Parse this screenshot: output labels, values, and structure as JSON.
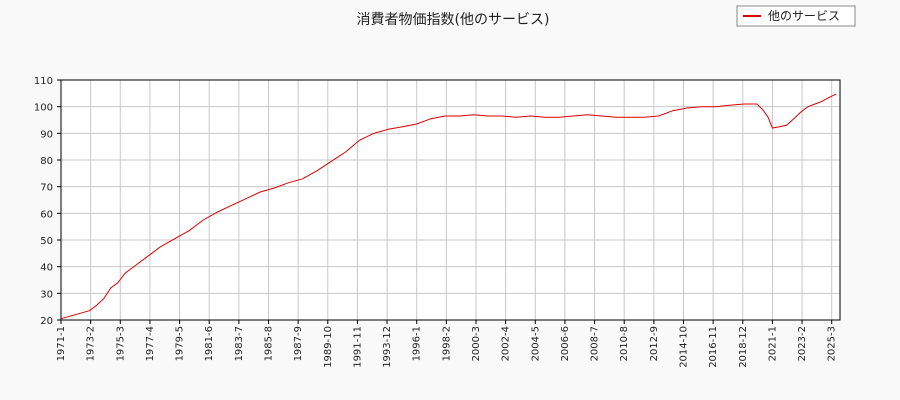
{
  "chart_data": {
    "type": "line",
    "title": "消費者物価指数(他のサービス)",
    "xlabel": "",
    "ylabel": "",
    "ylim": [
      20,
      110
    ],
    "yticks": [
      20,
      30,
      40,
      50,
      60,
      70,
      80,
      90,
      100,
      110
    ],
    "xticks": [
      "1971-1",
      "1973-2",
      "1975-3",
      "1977-4",
      "1979-5",
      "1981-6",
      "1983-7",
      "1985-8",
      "1987-9",
      "1989-10",
      "1991-11",
      "1993-12",
      "1996-1",
      "1998-2",
      "2000-3",
      "2002-4",
      "2004-5",
      "2006-6",
      "2008-7",
      "2010-8",
      "2012-9",
      "2014-10",
      "2016-11",
      "2018-12",
      "2021-1",
      "2023-2",
      "2025-3"
    ],
    "grid": true,
    "legend_position": "top-right",
    "line_color": "#dd0000",
    "series": [
      {
        "name": "他のサービス",
        "x": [
          1971.0,
          1972.0,
          1973.0,
          1973.5,
          1974.0,
          1974.5,
          1975.0,
          1975.5,
          1976.0,
          1977.0,
          1978.0,
          1979.0,
          1980.0,
          1981.0,
          1982.0,
          1983.0,
          1984.0,
          1985.0,
          1986.0,
          1987.0,
          1988.0,
          1989.0,
          1990.0,
          1991.0,
          1992.0,
          1993.0,
          1994.0,
          1995.0,
          1996.0,
          1997.0,
          1998.0,
          1999.0,
          2000.0,
          2001.0,
          2002.0,
          2003.0,
          2004.0,
          2005.0,
          2006.0,
          2007.0,
          2008.0,
          2009.0,
          2010.0,
          2011.0,
          2012.0,
          2013.0,
          2014.0,
          2015.0,
          2016.0,
          2017.0,
          2018.0,
          2019.0,
          2019.9,
          2020.3,
          2020.7,
          2021.0,
          2021.5,
          2022.0,
          2022.5,
          2023.0,
          2023.5,
          2024.0,
          2024.5,
          2025.0,
          2025.5
        ],
        "y": [
          20.5,
          22.0,
          23.5,
          25.5,
          28.0,
          32.0,
          34.0,
          37.5,
          39.5,
          43.5,
          47.5,
          50.5,
          53.5,
          57.5,
          60.5,
          63.0,
          65.5,
          68.0,
          69.5,
          71.5,
          73.0,
          76.0,
          79.5,
          83.0,
          87.5,
          90.0,
          91.5,
          92.5,
          93.5,
          95.5,
          96.5,
          96.5,
          97.0,
          96.5,
          96.5,
          96.0,
          96.5,
          96.0,
          96.0,
          96.5,
          97.0,
          96.5,
          96.0,
          96.0,
          96.0,
          96.5,
          98.5,
          99.5,
          100.0,
          100.0,
          100.5,
          101.0,
          101.0,
          99.0,
          96.0,
          92.0,
          92.5,
          93.0,
          95.5,
          98.0,
          100.0,
          101.0,
          102.0,
          103.5,
          104.8
        ]
      }
    ]
  }
}
